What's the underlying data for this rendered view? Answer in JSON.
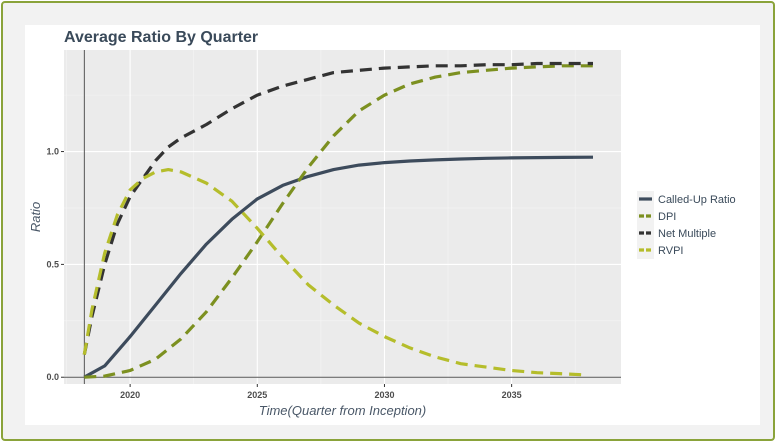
{
  "chart_data": {
    "type": "line",
    "title": "Average Ratio By Quarter",
    "xlabel": "Time(Quarter from Inception)",
    "ylabel": "Ratio",
    "xlim": [
      2017.4,
      2039.3
    ],
    "ylim": [
      -0.03,
      1.45
    ],
    "x_ticks": [
      2020,
      2025,
      2030,
      2035
    ],
    "x_tick_labels": [
      "2020",
      "2025",
      "2030",
      "2035"
    ],
    "y_ticks": [
      0.0,
      0.5,
      1.0
    ],
    "y_tick_labels": [
      "0.0",
      "0.5",
      "1.0"
    ],
    "vline_x": 2018.2,
    "grid": true,
    "legend_position": "right",
    "series": [
      {
        "name": "Called-Up Ratio",
        "color": "#3d4b5c",
        "dash": "solid",
        "x": [
          2018.2,
          2019,
          2020,
          2021,
          2022,
          2023,
          2024,
          2025,
          2026,
          2027,
          2028,
          2029,
          2030,
          2031,
          2032,
          2033,
          2034,
          2035,
          2036,
          2037,
          2038.2
        ],
        "y": [
          0.0,
          0.05,
          0.18,
          0.32,
          0.46,
          0.59,
          0.7,
          0.79,
          0.85,
          0.89,
          0.92,
          0.94,
          0.951,
          0.958,
          0.963,
          0.967,
          0.97,
          0.972,
          0.973,
          0.974,
          0.975
        ]
      },
      {
        "name": "DPI",
        "color": "#7c9020",
        "dash": "dashed",
        "x": [
          2018.2,
          2019,
          2020,
          2021,
          2022,
          2023,
          2024,
          2025,
          2026,
          2027,
          2028,
          2029,
          2030,
          2031,
          2032,
          2033,
          2034,
          2035,
          2036,
          2037,
          2038.2
        ],
        "y": [
          0.0,
          0.005,
          0.03,
          0.08,
          0.17,
          0.29,
          0.44,
          0.6,
          0.77,
          0.93,
          1.07,
          1.18,
          1.25,
          1.3,
          1.33,
          1.35,
          1.36,
          1.37,
          1.375,
          1.38,
          1.38
        ]
      },
      {
        "name": "Net Multiple",
        "color": "#333333",
        "dash": "dashed",
        "x": [
          2018.2,
          2018.5,
          2019,
          2019.5,
          2020,
          2020.5,
          2021,
          2021.5,
          2022,
          2023,
          2024,
          2025,
          2026,
          2027,
          2028,
          2029,
          2030,
          2031,
          2032,
          2033,
          2034,
          2035,
          2036,
          2037,
          2038.2
        ],
        "y": [
          0.1,
          0.27,
          0.5,
          0.68,
          0.8,
          0.88,
          0.96,
          1.02,
          1.06,
          1.12,
          1.19,
          1.25,
          1.29,
          1.32,
          1.35,
          1.36,
          1.37,
          1.375,
          1.38,
          1.38,
          1.385,
          1.385,
          1.39,
          1.39,
          1.39
        ]
      },
      {
        "name": "RVPI",
        "color": "#b5bd2b",
        "dash": "dashed",
        "x": [
          2018.2,
          2018.5,
          2019,
          2019.5,
          2020,
          2020.5,
          2021,
          2021.5,
          2022,
          2023,
          2024,
          2025,
          2026,
          2027,
          2028,
          2029,
          2030,
          2031,
          2032,
          2033,
          2034,
          2035,
          2036,
          2037,
          2038
        ],
        "y": [
          0.1,
          0.3,
          0.55,
          0.72,
          0.83,
          0.88,
          0.91,
          0.92,
          0.91,
          0.86,
          0.78,
          0.66,
          0.53,
          0.41,
          0.32,
          0.24,
          0.18,
          0.13,
          0.09,
          0.06,
          0.045,
          0.03,
          0.02,
          0.015,
          0.01
        ]
      }
    ]
  }
}
